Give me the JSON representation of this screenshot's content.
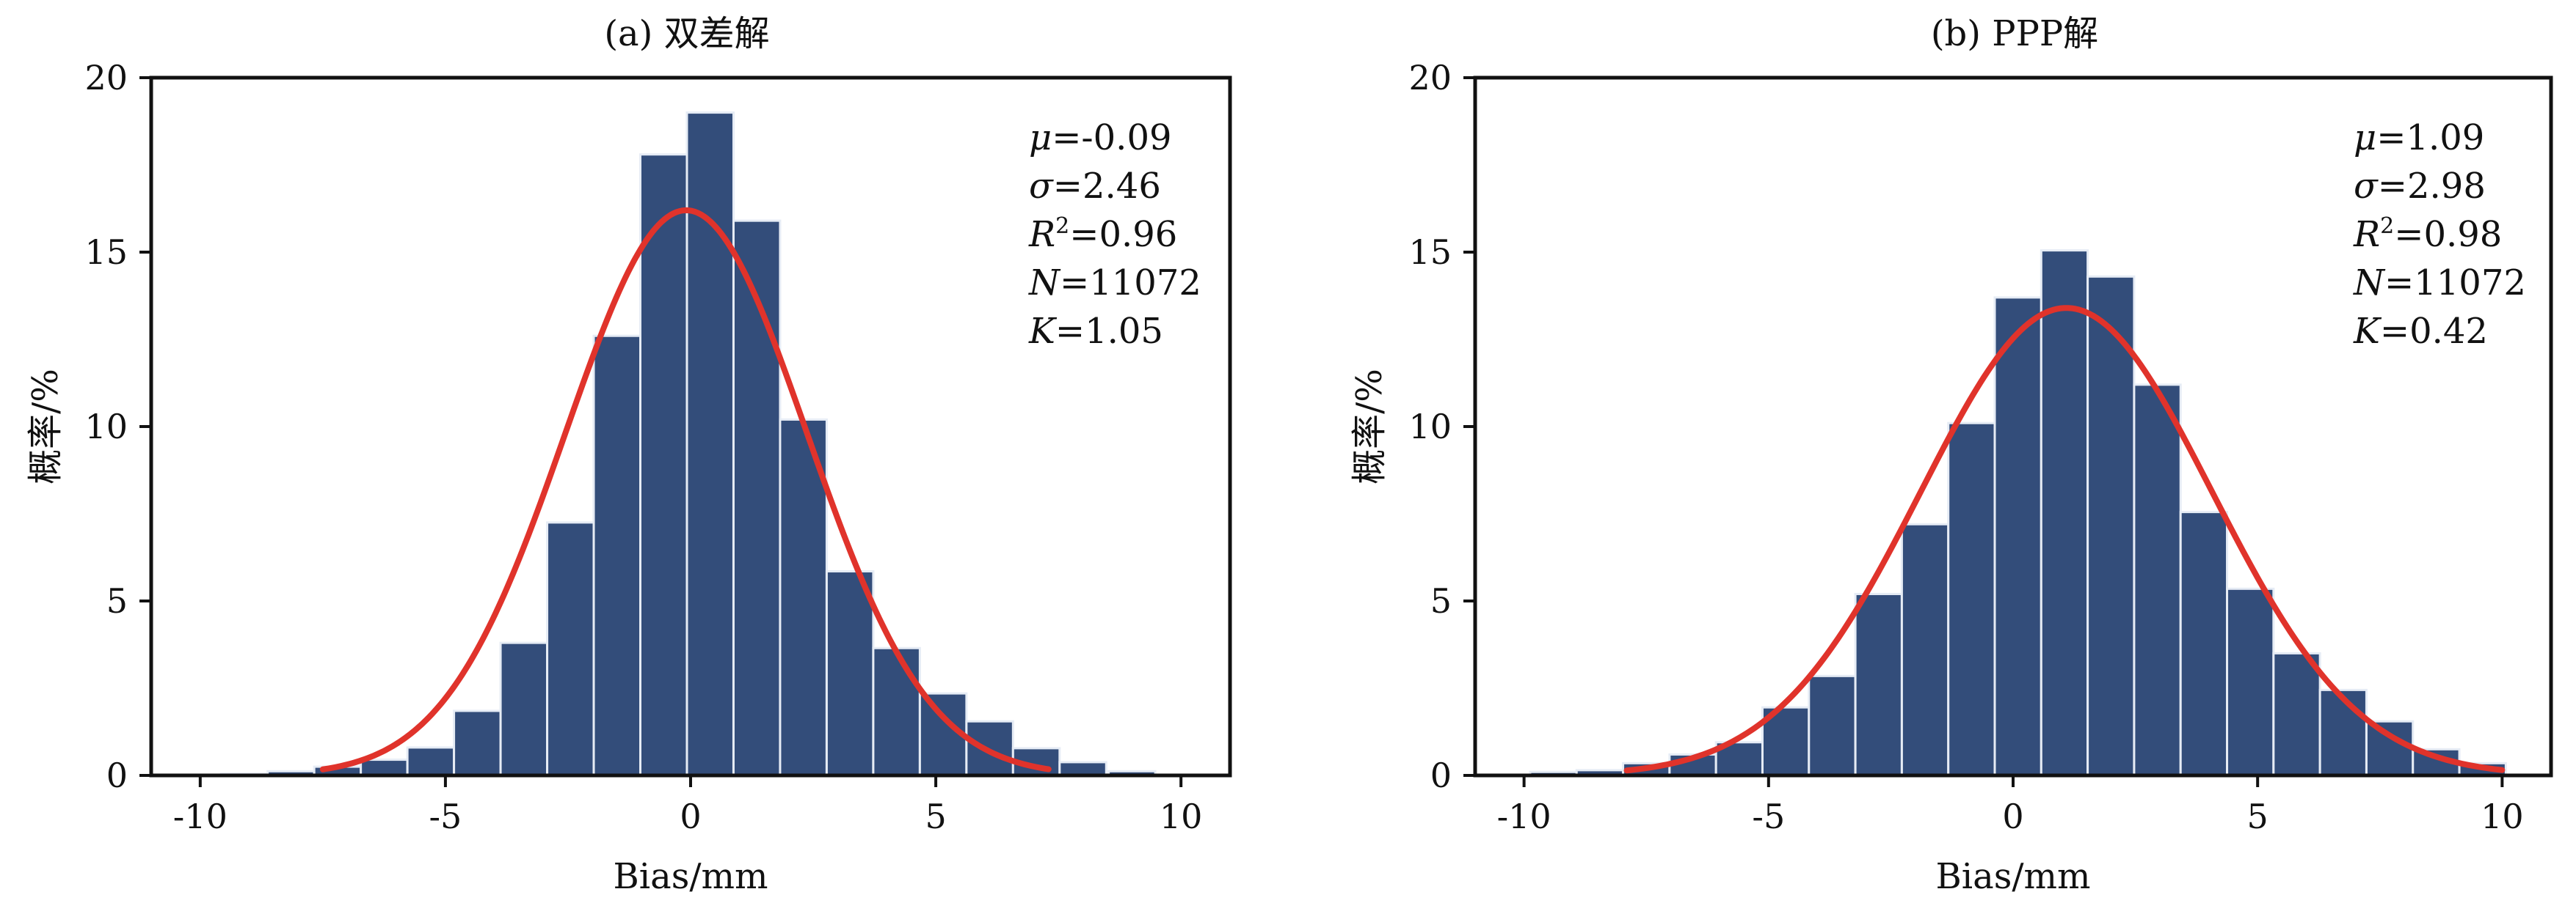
{
  "colors": {
    "bar_fill": "#334d7a",
    "bar_edge": "#e6ecf5",
    "fit_curve": "#e0332b",
    "axis": "#111111"
  },
  "chart_data": [
    {
      "type": "bar",
      "subtype": "histogram-with-normal-fit",
      "title": "(a) 双差解",
      "xlabel": "Bias/mm",
      "ylabel": "概率/%",
      "xlim": [
        -11,
        11
      ],
      "ylim": [
        0,
        20
      ],
      "xticks": [
        -10,
        -5,
        0,
        5,
        10
      ],
      "xtick_labels": [
        "-10",
        "-5",
        "0",
        "5",
        "10"
      ],
      "yticks": [
        0,
        5,
        10,
        15,
        20
      ],
      "ytick_labels": [
        "0",
        "5",
        "10",
        "15",
        "20"
      ],
      "grid": false,
      "bin_width": 0.95,
      "bin_centers": [
        -10.05,
        -9.1,
        -8.15,
        -7.2,
        -6.25,
        -5.3,
        -4.35,
        -3.4,
        -2.45,
        -1.5,
        -0.55,
        0.4,
        1.35,
        2.3,
        3.25,
        4.2,
        5.15,
        6.1,
        7.05,
        8.0,
        9.0
      ],
      "values": [
        0.02,
        0.05,
        0.12,
        0.25,
        0.45,
        0.8,
        1.85,
        3.8,
        7.25,
        12.6,
        17.8,
        19.0,
        15.9,
        10.2,
        5.85,
        3.65,
        2.35,
        1.55,
        0.78,
        0.38,
        0.12
      ],
      "fit": {
        "label": "normal fit",
        "mu": -0.09,
        "sigma": 2.46,
        "peak": 16.2,
        "x_range": [
          -7.5,
          7.3
        ]
      },
      "annotations": [
        {
          "symbol": "μ",
          "sup": "",
          "value": "=-0.09"
        },
        {
          "symbol": "σ",
          "sup": "",
          "value": "=2.46"
        },
        {
          "symbol": "R",
          "sup": "2",
          "value": "=0.96"
        },
        {
          "symbol": "N",
          "sup": "",
          "value": "=11072"
        },
        {
          "symbol": "K",
          "sup": "",
          "value": "=1.05"
        }
      ]
    },
    {
      "type": "bar",
      "subtype": "histogram-with-normal-fit",
      "title": "(b) PPP解",
      "xlabel": "Bias/mm",
      "ylabel": "概率/%",
      "xlim": [
        -11,
        11
      ],
      "ylim": [
        0,
        20
      ],
      "xticks": [
        -10,
        -5,
        0,
        5,
        10
      ],
      "xtick_labels": [
        "-10",
        "-5",
        "0",
        "5",
        "10"
      ],
      "yticks": [
        0,
        5,
        10,
        15,
        20
      ],
      "ytick_labels": [
        "0",
        "5",
        "10",
        "15",
        "20"
      ],
      "grid": false,
      "bin_width": 0.95,
      "bin_centers": [
        -9.4,
        -8.45,
        -7.5,
        -6.55,
        -5.6,
        -4.65,
        -3.7,
        -2.75,
        -1.8,
        -0.85,
        0.1,
        1.05,
        2.0,
        2.95,
        3.9,
        4.85,
        5.8,
        6.75,
        7.7,
        8.65,
        9.6
      ],
      "values": [
        0.1,
        0.15,
        0.35,
        0.6,
        0.95,
        1.95,
        2.85,
        5.2,
        7.2,
        10.1,
        13.7,
        15.05,
        14.3,
        11.2,
        7.55,
        5.35,
        3.5,
        2.45,
        1.55,
        0.75,
        0.35
      ],
      "fit": {
        "label": "normal fit",
        "mu": 1.09,
        "sigma": 2.98,
        "peak": 13.4,
        "x_range": [
          -7.9,
          10.0
        ]
      },
      "annotations": [
        {
          "symbol": "μ",
          "sup": "",
          "value": "=1.09"
        },
        {
          "symbol": "σ",
          "sup": "",
          "value": "=2.98"
        },
        {
          "symbol": "R",
          "sup": "2",
          "value": "=0.98"
        },
        {
          "symbol": "N",
          "sup": "",
          "value": "=11072"
        },
        {
          "symbol": "K",
          "sup": "",
          "value": "=0.42"
        }
      ]
    }
  ]
}
